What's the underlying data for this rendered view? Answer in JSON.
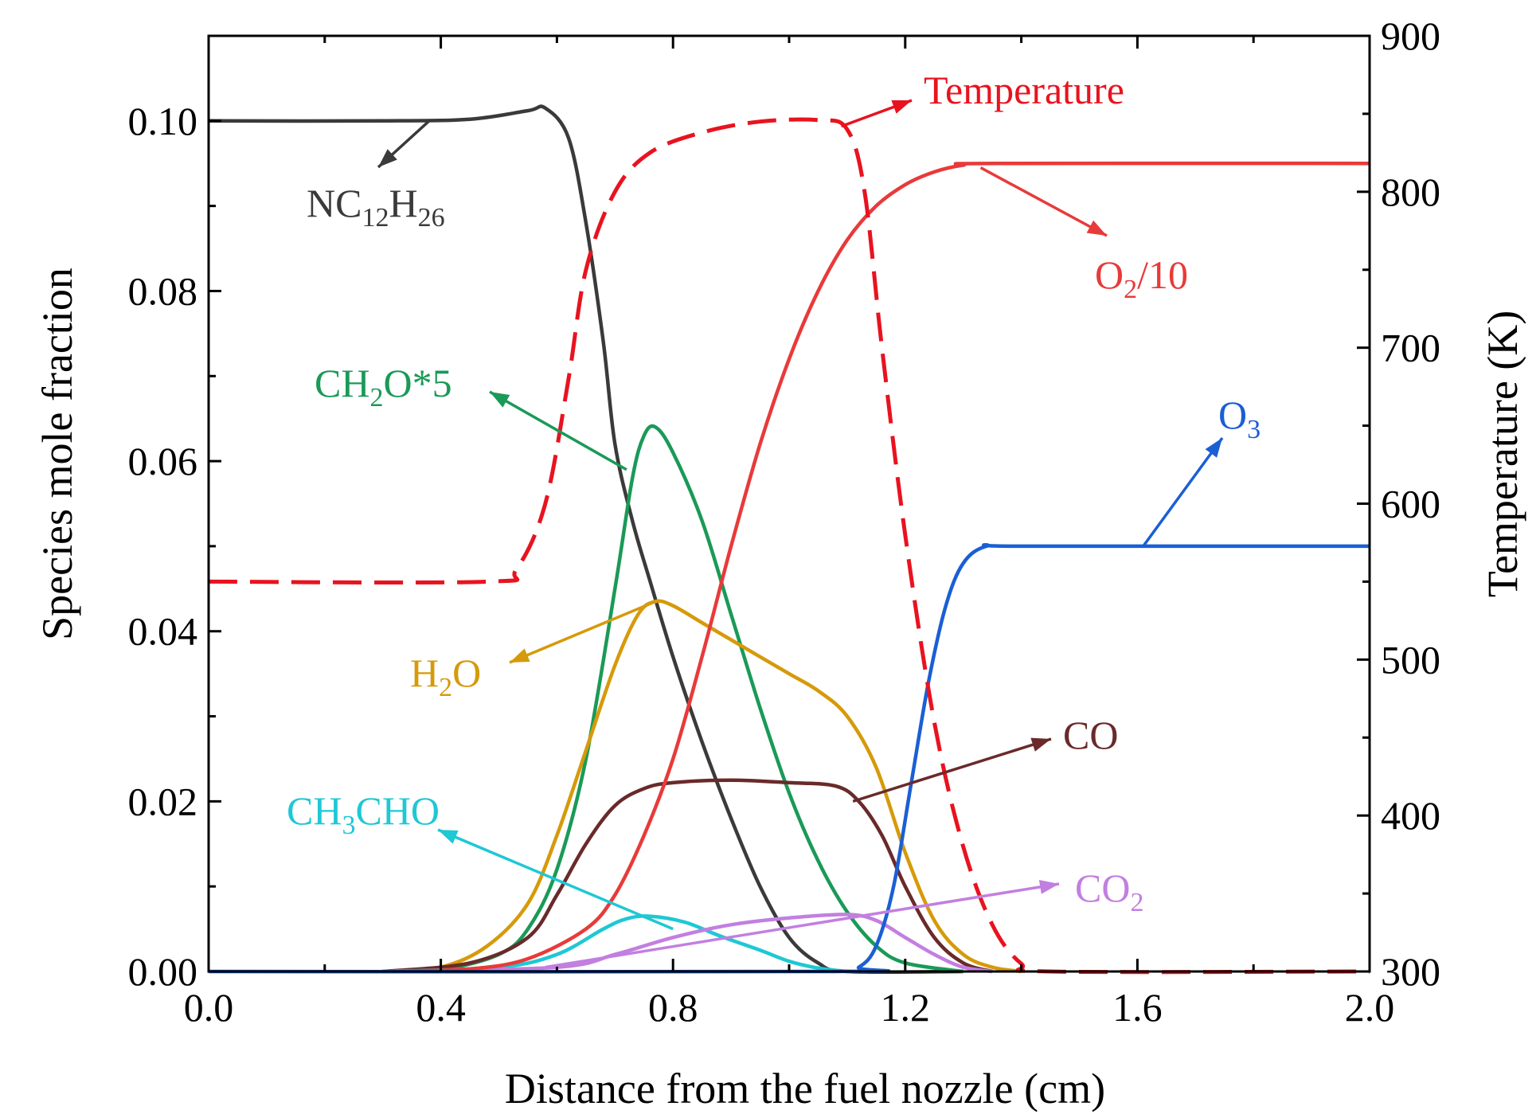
{
  "chart_data": {
    "type": "line",
    "xlabel": "Distance from the fuel nozzle (cm)",
    "ylabel": "Species mole fraction",
    "y2label": "Temperature (K)",
    "xlim": [
      0.0,
      2.0
    ],
    "ylim": [
      0.0,
      0.11
    ],
    "y2lim": [
      300,
      900
    ],
    "xticks": [
      "0.0",
      "0.4",
      "0.8",
      "1.2",
      "1.6",
      "2.0"
    ],
    "yticks": [
      "0.00",
      "0.02",
      "0.04",
      "0.06",
      "0.08",
      "0.10"
    ],
    "y2ticks": [
      "300",
      "400",
      "500",
      "600",
      "700",
      "800",
      "900"
    ],
    "series": [
      {
        "name": "NC12H26",
        "color": "#3a3a3a",
        "axis": "left",
        "dash": false,
        "points": [
          [
            0.0,
            0.1
          ],
          [
            0.3,
            0.1
          ],
          [
            0.45,
            0.1002
          ],
          [
            0.55,
            0.1012
          ],
          [
            0.58,
            0.1015
          ],
          [
            0.62,
            0.098
          ],
          [
            0.65,
            0.088
          ],
          [
            0.68,
            0.074
          ],
          [
            0.7,
            0.062
          ],
          [
            0.73,
            0.053
          ],
          [
            0.76,
            0.046
          ],
          [
            0.8,
            0.037
          ],
          [
            0.85,
            0.027
          ],
          [
            0.9,
            0.018
          ],
          [
            0.95,
            0.01
          ],
          [
            1.0,
            0.004
          ],
          [
            1.05,
            0.001
          ],
          [
            1.1,
            0.0
          ],
          [
            1.3,
            0.0
          ]
        ]
      },
      {
        "name": "CH2O*5",
        "color": "#1a9a57",
        "axis": "left",
        "dash": false,
        "points": [
          [
            0.3,
            0.0
          ],
          [
            0.4,
            0.0002
          ],
          [
            0.5,
            0.002
          ],
          [
            0.55,
            0.005
          ],
          [
            0.6,
            0.012
          ],
          [
            0.65,
            0.025
          ],
          [
            0.7,
            0.045
          ],
          [
            0.73,
            0.058
          ],
          [
            0.75,
            0.063
          ],
          [
            0.77,
            0.064
          ],
          [
            0.8,
            0.061
          ],
          [
            0.85,
            0.053
          ],
          [
            0.9,
            0.042
          ],
          [
            0.95,
            0.031
          ],
          [
            1.0,
            0.021
          ],
          [
            1.05,
            0.013
          ],
          [
            1.1,
            0.007
          ],
          [
            1.15,
            0.003
          ],
          [
            1.2,
            0.001
          ],
          [
            1.3,
            0.0
          ]
        ]
      },
      {
        "name": "H2O",
        "color": "#d69a0a",
        "axis": "left",
        "dash": false,
        "points": [
          [
            0.3,
            0.0
          ],
          [
            0.4,
            0.0005
          ],
          [
            0.48,
            0.003
          ],
          [
            0.55,
            0.008
          ],
          [
            0.6,
            0.016
          ],
          [
            0.65,
            0.026
          ],
          [
            0.7,
            0.036
          ],
          [
            0.74,
            0.042
          ],
          [
            0.77,
            0.0435
          ],
          [
            0.8,
            0.043
          ],
          [
            0.85,
            0.041
          ],
          [
            0.9,
            0.039
          ],
          [
            0.95,
            0.037
          ],
          [
            1.0,
            0.035
          ],
          [
            1.05,
            0.033
          ],
          [
            1.1,
            0.03
          ],
          [
            1.15,
            0.024
          ],
          [
            1.2,
            0.014
          ],
          [
            1.25,
            0.006
          ],
          [
            1.3,
            0.002
          ],
          [
            1.35,
            0.0005
          ],
          [
            1.4,
            0.0
          ]
        ]
      },
      {
        "name": "CO",
        "color": "#6a2a2a",
        "axis": "left",
        "dash": false,
        "points": [
          [
            0.3,
            0.0
          ],
          [
            0.45,
            0.001
          ],
          [
            0.55,
            0.004
          ],
          [
            0.6,
            0.009
          ],
          [
            0.65,
            0.015
          ],
          [
            0.7,
            0.0195
          ],
          [
            0.75,
            0.0215
          ],
          [
            0.8,
            0.0222
          ],
          [
            0.9,
            0.0225
          ],
          [
            1.0,
            0.0222
          ],
          [
            1.08,
            0.0218
          ],
          [
            1.12,
            0.02
          ],
          [
            1.16,
            0.016
          ],
          [
            1.2,
            0.01
          ],
          [
            1.25,
            0.004
          ],
          [
            1.3,
            0.001
          ],
          [
            1.35,
            0.0
          ]
        ]
      },
      {
        "name": "CH3CHO",
        "color": "#1ec8d4",
        "axis": "left",
        "dash": false,
        "points": [
          [
            0.3,
            0.0
          ],
          [
            0.5,
            0.0005
          ],
          [
            0.6,
            0.002
          ],
          [
            0.68,
            0.005
          ],
          [
            0.72,
            0.0062
          ],
          [
            0.76,
            0.0065
          ],
          [
            0.82,
            0.0058
          ],
          [
            0.88,
            0.0042
          ],
          [
            0.95,
            0.0025
          ],
          [
            1.0,
            0.0012
          ],
          [
            1.05,
            0.0004
          ],
          [
            1.1,
            0.0
          ]
        ]
      },
      {
        "name": "CO2",
        "color": "#c27fe0",
        "axis": "left",
        "dash": false,
        "points": [
          [
            0.3,
            0.0
          ],
          [
            0.6,
            0.0005
          ],
          [
            0.7,
            0.002
          ],
          [
            0.8,
            0.004
          ],
          [
            0.9,
            0.0055
          ],
          [
            1.0,
            0.0063
          ],
          [
            1.1,
            0.0067
          ],
          [
            1.15,
            0.006
          ],
          [
            1.2,
            0.004
          ],
          [
            1.25,
            0.002
          ],
          [
            1.3,
            0.0005
          ],
          [
            1.35,
            0.0
          ]
        ]
      },
      {
        "name": "O2/10",
        "color": "#e83a3a",
        "axis": "left",
        "dash": false,
        "points": [
          [
            0.3,
            0.0
          ],
          [
            0.45,
            0.0003
          ],
          [
            0.55,
            0.0015
          ],
          [
            0.65,
            0.005
          ],
          [
            0.7,
            0.009
          ],
          [
            0.75,
            0.016
          ],
          [
            0.8,
            0.025
          ],
          [
            0.85,
            0.037
          ],
          [
            0.9,
            0.05
          ],
          [
            0.95,
            0.062
          ],
          [
            1.0,
            0.072
          ],
          [
            1.05,
            0.08
          ],
          [
            1.1,
            0.086
          ],
          [
            1.15,
            0.09
          ],
          [
            1.2,
            0.0925
          ],
          [
            1.25,
            0.094
          ],
          [
            1.3,
            0.0948
          ],
          [
            1.35,
            0.095
          ],
          [
            2.0,
            0.095
          ]
        ]
      },
      {
        "name": "O3",
        "color": "#1a5fd4",
        "axis": "left",
        "dash": false,
        "points": [
          [
            0.0,
            0.0
          ],
          [
            1.08,
            0.0
          ],
          [
            1.12,
            0.0005
          ],
          [
            1.15,
            0.003
          ],
          [
            1.18,
            0.01
          ],
          [
            1.21,
            0.022
          ],
          [
            1.24,
            0.034
          ],
          [
            1.27,
            0.043
          ],
          [
            1.3,
            0.048
          ],
          [
            1.34,
            0.05
          ],
          [
            1.4,
            0.05
          ],
          [
            2.0,
            0.05
          ]
        ]
      },
      {
        "name": "Temperature",
        "color": "#e8131f",
        "axis": "right",
        "dash": true,
        "points": [
          [
            0.0,
            550
          ],
          [
            0.48,
            550
          ],
          [
            0.53,
            558
          ],
          [
            0.58,
            600
          ],
          [
            0.62,
            680
          ],
          [
            0.65,
            750
          ],
          [
            0.7,
            800
          ],
          [
            0.76,
            825
          ],
          [
            0.85,
            838
          ],
          [
            0.95,
            845
          ],
          [
            1.05,
            846
          ],
          [
            1.1,
            840
          ],
          [
            1.13,
            800
          ],
          [
            1.16,
            700
          ],
          [
            1.2,
            580
          ],
          [
            1.25,
            460
          ],
          [
            1.3,
            380
          ],
          [
            1.35,
            330
          ],
          [
            1.4,
            305
          ],
          [
            1.45,
            300
          ],
          [
            2.0,
            300
          ]
        ]
      }
    ],
    "annotations": [
      {
        "id": "nc12h26",
        "main": "NC",
        "sub1": "12",
        "mid": "H",
        "sub2": "26",
        "end": "",
        "color": "#3a3a3a"
      },
      {
        "id": "temperature",
        "main": "Temperature",
        "color": "#e8131f"
      },
      {
        "id": "o2",
        "main": "O",
        "sub1": "2",
        "mid": "/10",
        "color": "#e83a3a"
      },
      {
        "id": "ch2o",
        "main": "CH",
        "sub1": "2",
        "mid": "O*5",
        "color": "#1a9a57"
      },
      {
        "id": "o3",
        "main": "O",
        "sub1": "3",
        "color": "#1a5fd4"
      },
      {
        "id": "h2o",
        "main": "H",
        "sub1": "2",
        "mid": "O",
        "color": "#d69a0a"
      },
      {
        "id": "co",
        "main": "CO",
        "color": "#6a2a2a"
      },
      {
        "id": "ch3cho",
        "main": "CH",
        "sub1": "3",
        "mid": "CHO",
        "color": "#1ec8d4"
      },
      {
        "id": "co2",
        "main": "CO",
        "sub1": "2",
        "color": "#c27fe0"
      }
    ]
  }
}
